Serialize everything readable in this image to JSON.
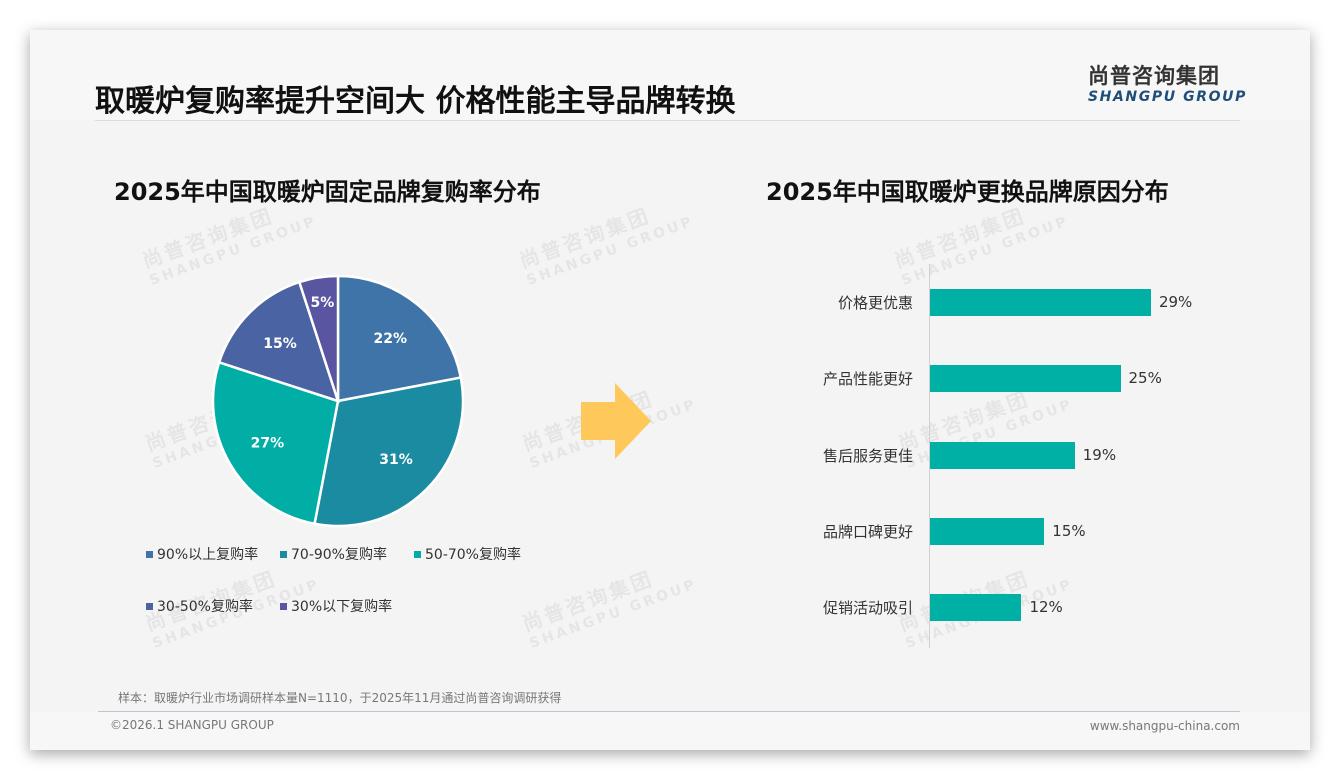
{
  "header": {
    "title": "取暖炉复购率提升空间大 价格性能主导品牌转换",
    "logo_cn": "尚普咨询集团",
    "logo_en": "SHANGPU GROUP"
  },
  "watermark": {
    "cn": "尚普咨询集团",
    "en": "SHANGPU GROUP"
  },
  "colors": {
    "bar": "#00b0a5",
    "arrow": "#ffc85a",
    "pie": [
      "#3f74a8",
      "#1a8ba1",
      "#00aea5",
      "#4a63a2",
      "#5a55a0"
    ]
  },
  "left_panel": {
    "title": "2025年中国取暖炉固定品牌复购率分布"
  },
  "right_panel": {
    "title": "2025年中国取暖炉更换品牌原因分布"
  },
  "chart_data": [
    {
      "type": "pie",
      "title": "2025年中国取暖炉固定品牌复购率分布",
      "categories": [
        "90%以上复购率",
        "70-90%复购率",
        "50-70%复购率",
        "30-50%复购率",
        "30%以下复购率"
      ],
      "values": [
        22,
        31,
        27,
        15,
        5
      ],
      "labels": [
        "22%",
        "31%",
        "27%",
        "15%",
        "5%"
      ],
      "start_angle": "12 o'clock",
      "direction": "clockwise",
      "legend_position": "bottom"
    },
    {
      "type": "bar",
      "orientation": "horizontal",
      "title": "2025年中国取暖炉更换品牌原因分布",
      "categories": [
        "价格更优惠",
        "产品性能更好",
        "售后服务更佳",
        "品牌口碑更好",
        "促销活动吸引"
      ],
      "values": [
        29,
        25,
        19,
        15,
        12
      ],
      "labels": [
        "29%",
        "25%",
        "19%",
        "15%",
        "12%"
      ],
      "xlabel": "",
      "ylabel": "",
      "grid": false
    }
  ],
  "footer": {
    "note": "样本：取暖炉行业市场调研样本量N=1110，于2025年11月通过尚普咨询调研获得",
    "copyright": "©2026.1 SHANGPU GROUP",
    "website": "www.shangpu-china.com"
  }
}
